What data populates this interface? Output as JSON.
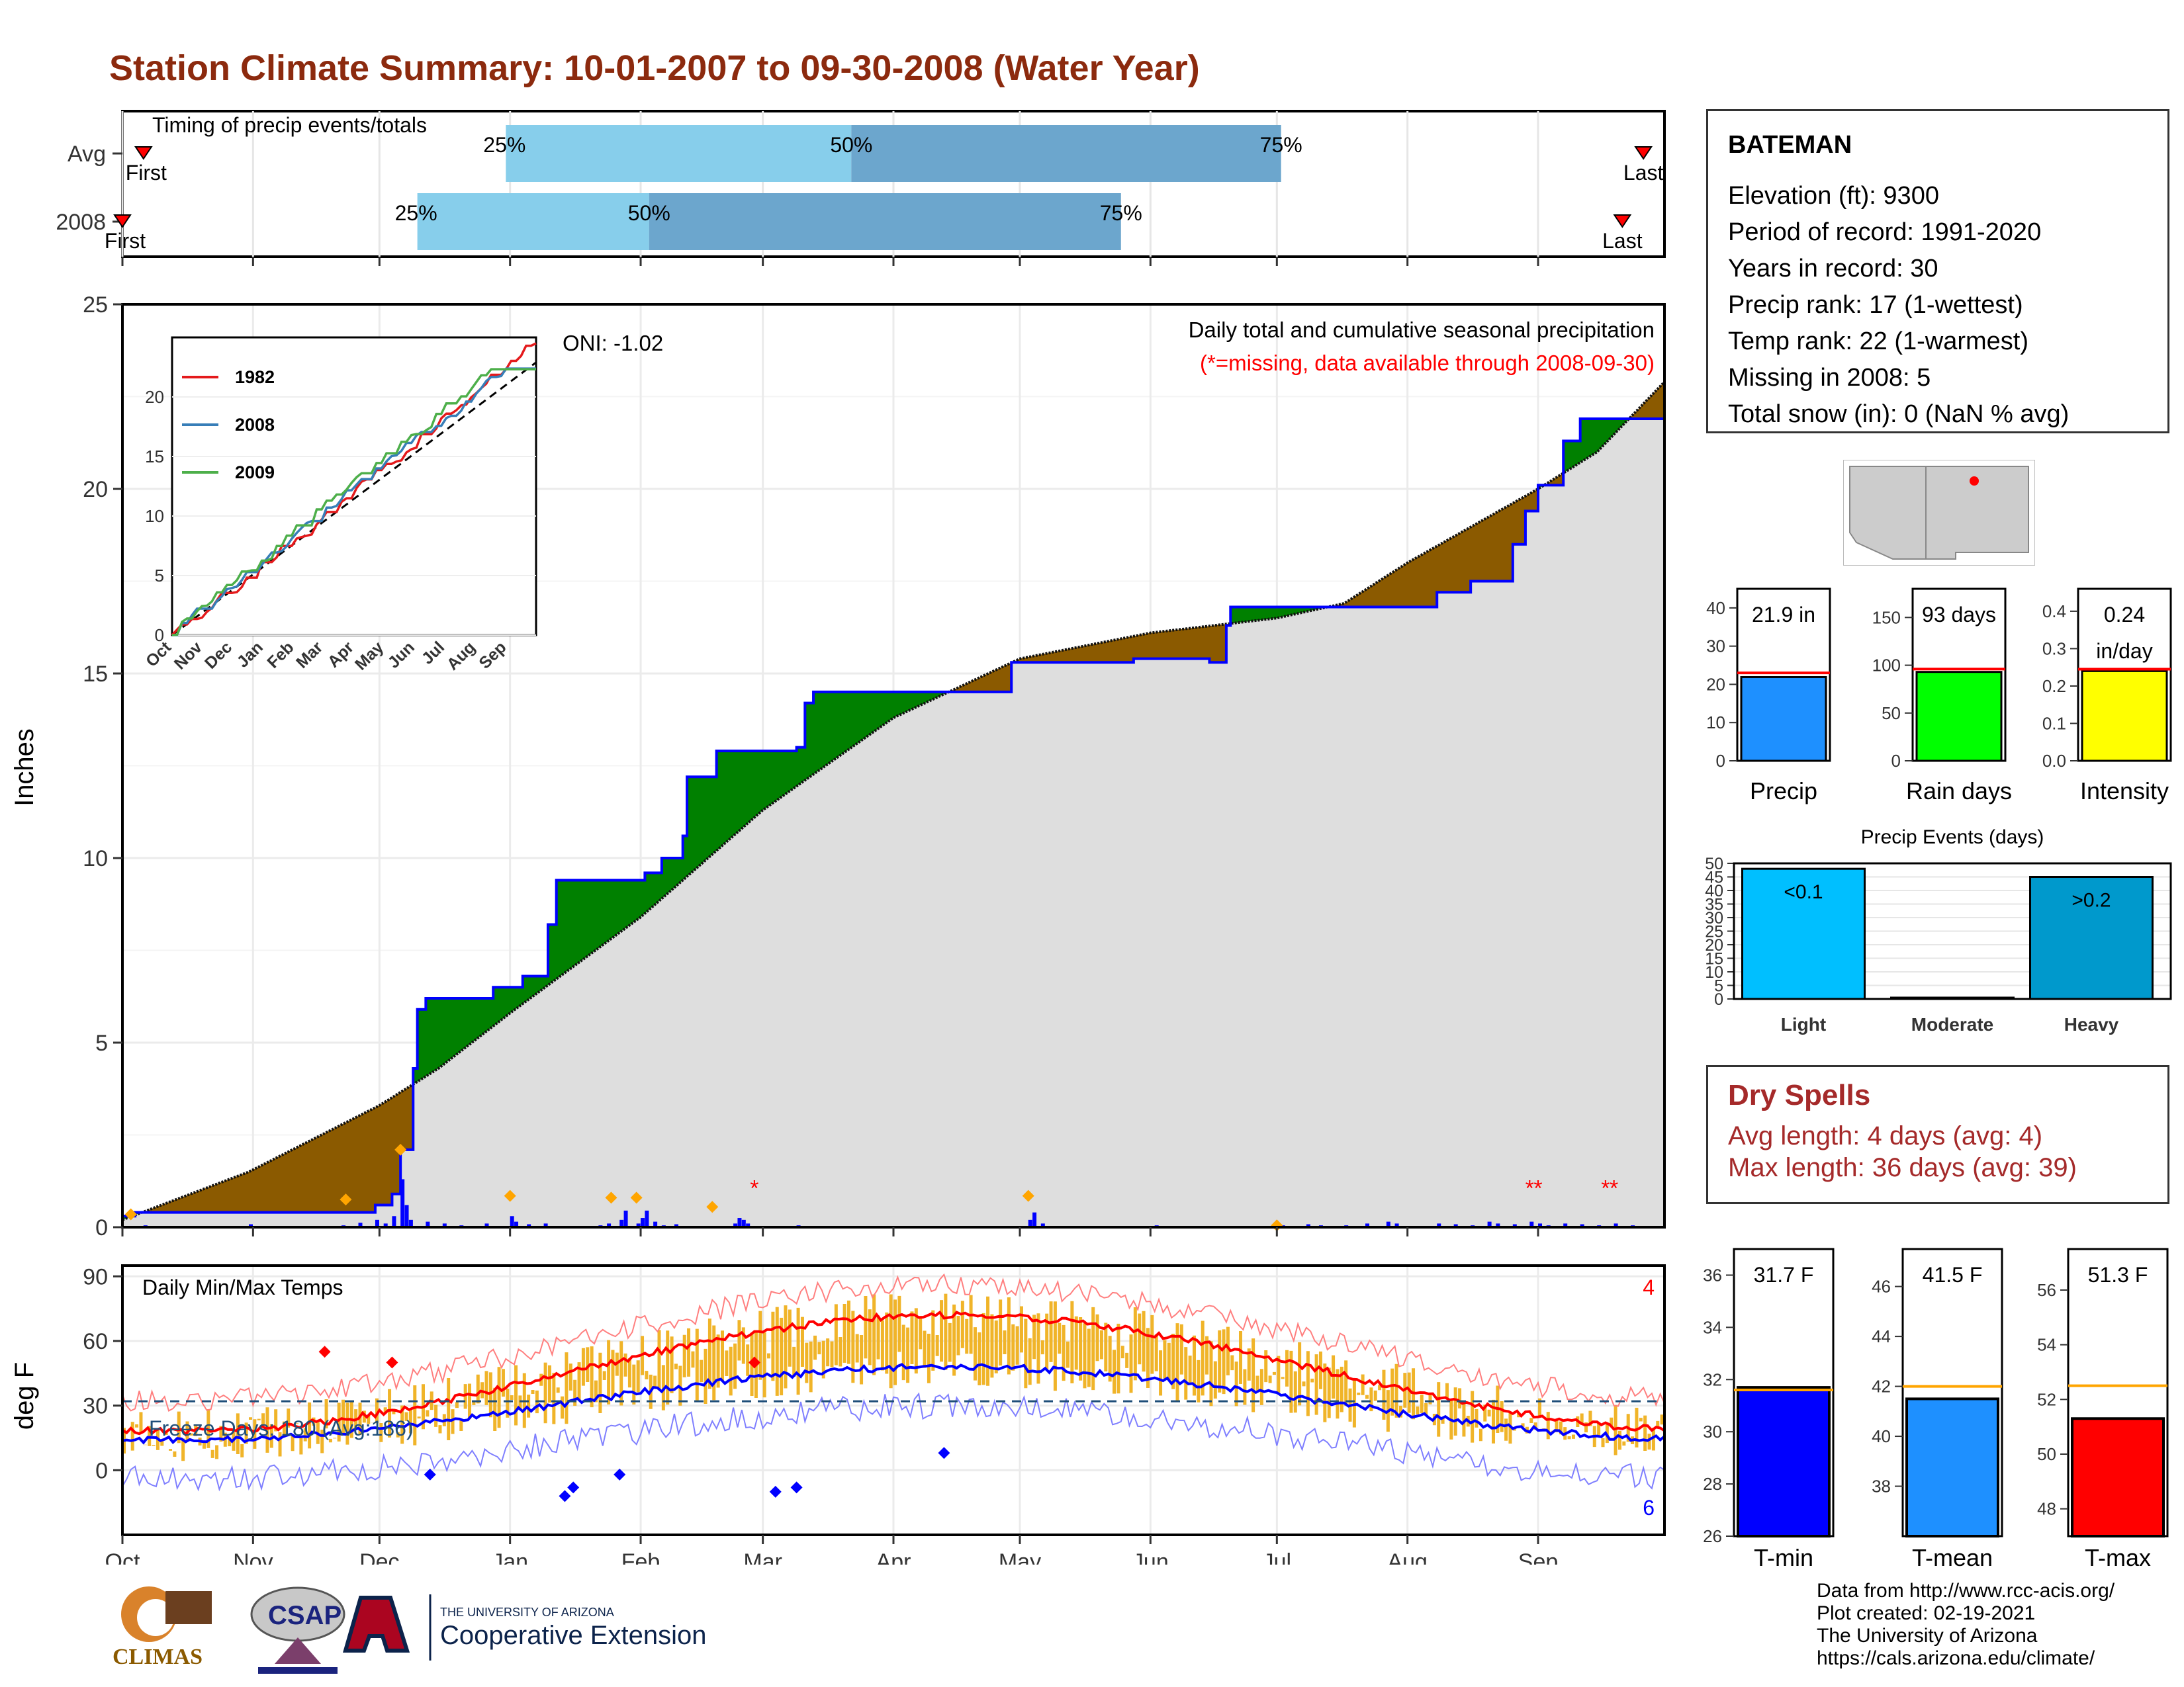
{
  "title": "Station Climate Summary: 10-01-2007 to 09-30-2008 (Water Year)",
  "timing": {
    "label": "Timing of precip events/totals",
    "rows": [
      {
        "name": "Avg",
        "first_label": "First",
        "last_label": "Last",
        "q25": "25%",
        "q50": "50%",
        "q75": "75%",
        "first_day": 5,
        "last_day": 361,
        "p25_day": 91,
        "p50_day": 173,
        "p75_day": 275
      },
      {
        "name": "2008",
        "first_label": "First",
        "last_label": "Last",
        "q25": "25%",
        "q50": "50%",
        "q75": "75%",
        "first_day": 0,
        "last_day": 356,
        "p25_day": 70,
        "p50_day": 125,
        "p75_day": 237
      }
    ]
  },
  "months": [
    "Oct",
    "Nov",
    "Dec",
    "Jan",
    "Feb",
    "Mar",
    "Apr",
    "May",
    "Jun",
    "Jul",
    "Aug",
    "Sep"
  ],
  "month_start_days": [
    0,
    31,
    61,
    92,
    123,
    152,
    183,
    213,
    244,
    274,
    305,
    336
  ],
  "precip_panel": {
    "ylabel": "Inches",
    "yticks": [
      "0",
      "5",
      "10",
      "15",
      "20",
      "25"
    ],
    "ymax": 25,
    "oni": "ONI: -1.02",
    "caption1": "Daily total and cumulative seasonal precipitation",
    "caption2": "(*=missing, data available through 2008-09-30)",
    "colors": {
      "normal_fill": "#dedede",
      "above": "#008000",
      "below": "#8b5a00",
      "line": "#0000ff",
      "daily": "#0000ff",
      "missing": "#ff0000",
      "marker": "#ffa500"
    }
  },
  "inset": {
    "yticks": [
      "0",
      "5",
      "10",
      "15",
      "20"
    ],
    "xticks": [
      "Oct",
      "Nov",
      "Dec",
      "Jan",
      "Feb",
      "Mar",
      "Apr",
      "May",
      "Jun",
      "Jul",
      "Aug",
      "Sep"
    ],
    "legend": [
      {
        "name": "1982",
        "color": "#e41a1c"
      },
      {
        "name": "2008",
        "color": "#377eb8"
      },
      {
        "name": "2009",
        "color": "#4daf4a"
      }
    ]
  },
  "temp_panel": {
    "ylabel": "deg F",
    "label": "Daily Min/Max Temps",
    "freeze": "Freeze Days: 180 (Avg:186)",
    "yticks": [
      "0",
      "30",
      "60",
      "90"
    ],
    "max_count": "4",
    "min_count": "6"
  },
  "station": {
    "name": "BATEMAN",
    "lines": [
      "Elevation (ft): 9300",
      "Period of record: 1991-2020",
      "Years in record: 30",
      "Precip rank: 17 (1-wettest)",
      "Temp rank: 22 (1-warmest)",
      "Missing in 2008: 5",
      "Total snow (in): 0 (NaN % avg)"
    ]
  },
  "summary_bars": [
    {
      "label": "Precip",
      "value_label": "21.9 in",
      "value": 21.9,
      "avg": 23.0,
      "ymax": 45,
      "yticks": [
        "0",
        "10",
        "20",
        "30",
        "40"
      ],
      "tick_vals": [
        0,
        10,
        20,
        30,
        40
      ],
      "color": "#1e90ff"
    },
    {
      "label": "Rain days",
      "value_label": "93 days",
      "value": 93,
      "avg": 96,
      "ymax": 180,
      "yticks": [
        "0",
        "50",
        "100",
        "150"
      ],
      "tick_vals": [
        0,
        50,
        100,
        150
      ],
      "color": "#00ff00"
    },
    {
      "label": "Intensity",
      "value_label": "0.24 in/day",
      "value": 0.24,
      "avg": 0.245,
      "ymax": 0.46,
      "yticks": [
        "0.0",
        "0.1",
        "0.2",
        "0.3",
        "0.4"
      ],
      "tick_vals": [
        0,
        0.1,
        0.2,
        0.3,
        0.4
      ],
      "color": "#ffff00"
    }
  ],
  "events": {
    "title": "Precip Events (days)",
    "yticks": [
      "0",
      "5",
      "10",
      "15",
      "20",
      "25",
      "30",
      "35",
      "40",
      "45",
      "50"
    ],
    "bars": [
      {
        "label": "Light",
        "value": 48,
        "tag": "<0.1",
        "color": "#00bfff"
      },
      {
        "label": "Moderate",
        "value": 0,
        "tag": "",
        "color": "#1e90ff"
      },
      {
        "label": "Heavy",
        "value": 45,
        "tag": ">0.2",
        "color": "#0099cc"
      }
    ]
  },
  "dry_spells": {
    "title": "Dry Spells",
    "avg_length": "Avg length: 4 days (avg: 4)",
    "max_length": "Max length: 36 days (avg: 39)"
  },
  "temp_bars": [
    {
      "label": "T-min",
      "value_label": "31.7 F",
      "value": 31.7,
      "avg": 31.6,
      "ymin": 26,
      "ymax": 37,
      "yticks": [
        "26",
        "28",
        "30",
        "32",
        "34",
        "36"
      ],
      "tick_vals": [
        26,
        28,
        30,
        32,
        34,
        36
      ],
      "color": "#0000ff"
    },
    {
      "label": "T-mean",
      "value_label": "41.5 F",
      "value": 41.5,
      "avg": 42.0,
      "ymin": 36,
      "ymax": 47.5,
      "yticks": [
        "38",
        "40",
        "42",
        "44",
        "46"
      ],
      "tick_vals": [
        38,
        40,
        42,
        44,
        46
      ],
      "color": "#1e90ff"
    },
    {
      "label": "T-max",
      "value_label": "51.3 F",
      "value": 51.3,
      "avg": 52.5,
      "ymin": 47,
      "ymax": 57.5,
      "yticks": [
        "48",
        "50",
        "52",
        "54",
        "56"
      ],
      "tick_vals": [
        48,
        50,
        52,
        54,
        56
      ],
      "color": "#ff0000"
    }
  ],
  "credits": [
    "Data from http://www.rcc-acis.org/",
    "Plot created: 02-19-2021",
    "The University of Arizona",
    "https://cals.arizona.edu/climate/"
  ],
  "logos": {
    "climas": "CLIMAS",
    "csap": "CSAP",
    "ua_top": "THE UNIVERSITY OF ARIZONA",
    "ua_main": "Cooperative Extension"
  }
}
